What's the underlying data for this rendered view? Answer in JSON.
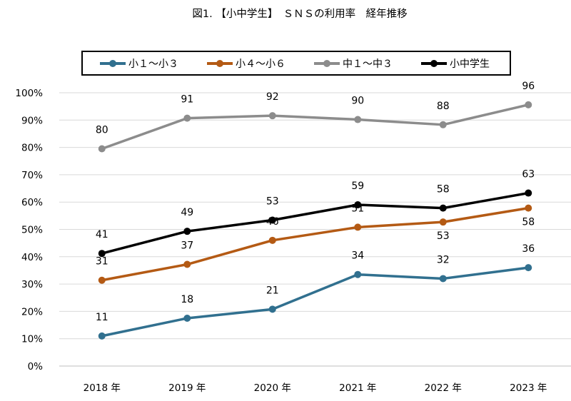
{
  "chart_data": {
    "type": "line",
    "title": "図1. 【小中学生】　ＳＮＳの利用率　経年推移",
    "categories": [
      "2018 年",
      "2019 年",
      "2020 年",
      "2021 年",
      "2022 年",
      "2023 年"
    ],
    "ylim": [
      0,
      100
    ],
    "yticks": [
      "0%",
      "10%",
      "20%",
      "30%",
      "40%",
      "50%",
      "60%",
      "70%",
      "80%",
      "90%",
      "100%"
    ],
    "grid": true,
    "legend_position": "top",
    "series": [
      {
        "name": "小１～小３",
        "color": "#31708f",
        "values": [
          11,
          17.5,
          20.8,
          33.5,
          32,
          36
        ],
        "labels": [
          "11",
          "18",
          "21",
          "34",
          "32",
          "36"
        ],
        "label_pos": [
          "above",
          "above",
          "above",
          "above",
          "above",
          "above"
        ]
      },
      {
        "name": "小４～小６",
        "color": "#b45a14",
        "values": [
          31.4,
          37.2,
          46,
          50.8,
          52.7,
          57.8
        ],
        "labels": [
          "31",
          "37",
          "46",
          "51",
          "53",
          "58"
        ],
        "label_pos": [
          "above",
          "above",
          "above",
          "above",
          "below",
          "below"
        ]
      },
      {
        "name": "中１～中３",
        "color": "#8c8c8c",
        "values": [
          79.5,
          90.7,
          91.6,
          90.2,
          88.3,
          95.6
        ],
        "labels": [
          "80",
          "91",
          "92",
          "90",
          "88",
          "96"
        ],
        "label_pos": [
          "above",
          "above",
          "above",
          "above",
          "above",
          "above"
        ]
      },
      {
        "name": "小中学生",
        "color": "#000000",
        "values": [
          41.2,
          49.3,
          53.4,
          59,
          57.8,
          63.3
        ],
        "labels": [
          "41",
          "49",
          "53",
          "59",
          "58",
          "63"
        ],
        "label_pos": [
          "above",
          "above",
          "above",
          "above",
          "above",
          "above"
        ]
      }
    ]
  }
}
